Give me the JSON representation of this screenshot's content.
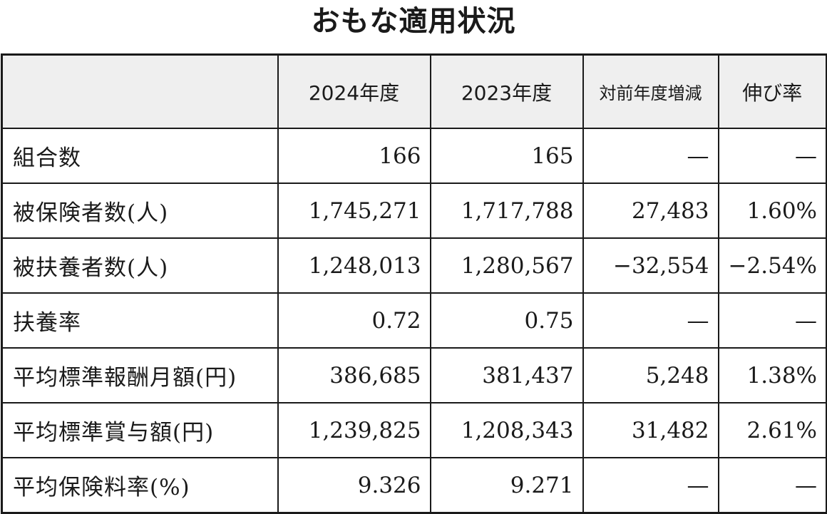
{
  "title": "おもな適用状況",
  "table": {
    "headers": [
      "",
      "2024年度",
      "2023年度",
      "対前年度増減",
      "伸び率"
    ],
    "rows": [
      {
        "label": "組合数",
        "y2024": "166",
        "y2023": "165",
        "diff": "—",
        "rate": "—"
      },
      {
        "label": "被保険者数(人)",
        "y2024": "1,745,271",
        "y2023": "1,717,788",
        "diff": "27,483",
        "rate": "1.60%"
      },
      {
        "label": "被扶養者数(人)",
        "y2024": "1,248,013",
        "y2023": "1,280,567",
        "diff": "−32,554",
        "rate": "−2.54%"
      },
      {
        "label": "扶養率",
        "y2024": "0.72",
        "y2023": "0.75",
        "diff": "—",
        "rate": "—"
      },
      {
        "label": "平均標準報酬月額(円)",
        "y2024": "386,685",
        "y2023": "381,437",
        "diff": "5,248",
        "rate": "1.38%"
      },
      {
        "label": "平均標準賞与額(円)",
        "y2024": "1,239,825",
        "y2023": "1,208,343",
        "diff": "31,482",
        "rate": "2.61%"
      },
      {
        "label": "平均保険料率(%)",
        "y2024": "9.326",
        "y2023": "9.271",
        "diff": "—",
        "rate": "—"
      }
    ]
  }
}
